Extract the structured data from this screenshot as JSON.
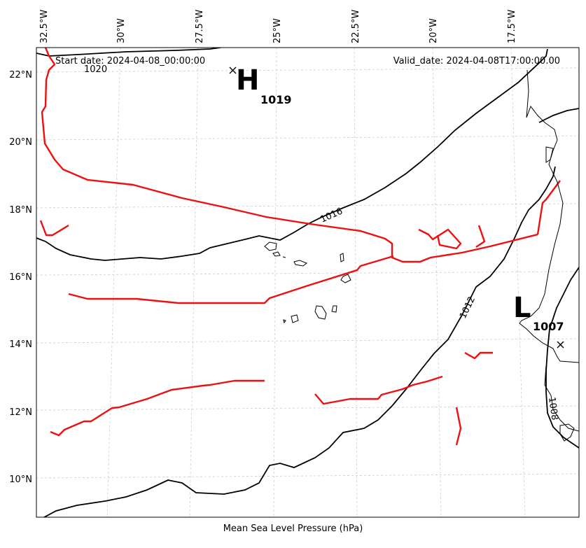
{
  "header": {
    "start_date": "Start date: 2024-04-08_00:00:00",
    "valid_date": "Valid_date: 2024-04-08T17:00:00.00"
  },
  "footer": {
    "caption": "Mean Sea Level Pressure (hPa)"
  },
  "axes": {
    "lon_labels": [
      "32.5°W",
      "30°W",
      "27.5°W",
      "25°W",
      "22.5°W",
      "20°W",
      "17.5°W"
    ],
    "lat_labels": [
      "22°N",
      "20°N",
      "18°N",
      "16°N",
      "14°N",
      "12°N",
      "10°N"
    ]
  },
  "pressure_centers": [
    {
      "type": "H",
      "value": "1019"
    },
    {
      "type": "L",
      "value": "1007"
    }
  ],
  "isobar_labels": [
    "1020",
    "1016",
    "1012",
    "1008"
  ],
  "colors": {
    "isobar": "#000000",
    "trough": "#ff0000",
    "grid": "#cccccc"
  }
}
